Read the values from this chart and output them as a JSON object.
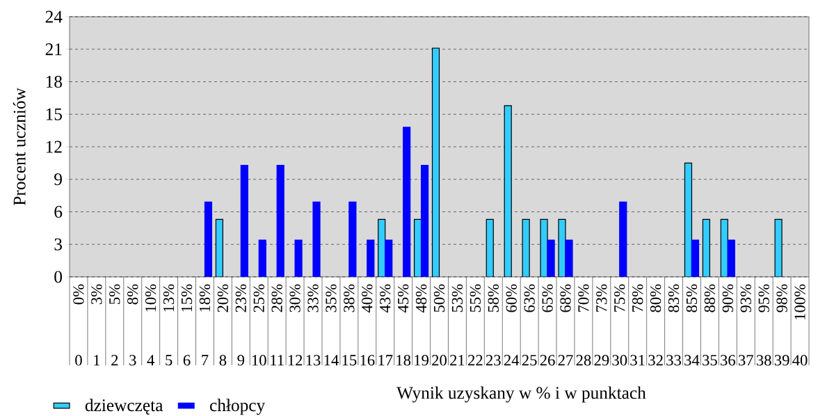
{
  "chart_data": {
    "type": "bar",
    "xlabel": "Wynik uzyskany w % i w punktach",
    "ylabel": "Procent uczniów",
    "categories": [
      "0",
      "1",
      "2",
      "3",
      "4",
      "5",
      "6",
      "7",
      "8",
      "9",
      "10",
      "11",
      "12",
      "13",
      "14",
      "15",
      "16",
      "17",
      "18",
      "19",
      "20",
      "21",
      "22",
      "23",
      "24",
      "25",
      "26",
      "27",
      "28",
      "29",
      "30",
      "31",
      "32",
      "33",
      "34",
      "35",
      "36",
      "37",
      "38",
      "39",
      "40"
    ],
    "x2lim": [
      -1.25,
      101.25
    ],
    "x2ticks": [
      {
        "value": 0,
        "label": "0%"
      },
      {
        "value": 2.5,
        "label": "3%"
      },
      {
        "value": 5,
        "label": "5%"
      },
      {
        "value": 7.5,
        "label": "8%"
      },
      {
        "value": 10,
        "label": "10%"
      },
      {
        "value": 12.5,
        "label": "13%"
      },
      {
        "value": 15,
        "label": "15%"
      },
      {
        "value": 17.5,
        "label": "18%"
      },
      {
        "value": 20,
        "label": "20%"
      },
      {
        "value": 22.5,
        "label": "23%"
      },
      {
        "value": 25,
        "label": "25%"
      },
      {
        "value": 27.5,
        "label": "28%"
      },
      {
        "value": 30,
        "label": "30%"
      },
      {
        "value": 32.5,
        "label": "33%"
      },
      {
        "value": 35,
        "label": "35%"
      },
      {
        "value": 37.5,
        "label": "38%"
      },
      {
        "value": 40,
        "label": "40%"
      },
      {
        "value": 42.5,
        "label": "43%"
      },
      {
        "value": 45,
        "label": "45%"
      },
      {
        "value": 47.5,
        "label": "48%"
      },
      {
        "value": 50,
        "label": "50%"
      },
      {
        "value": 52.5,
        "label": "53%"
      },
      {
        "value": 55,
        "label": "55%"
      },
      {
        "value": 57.5,
        "label": "58%"
      },
      {
        "value": 60,
        "label": "60%"
      },
      {
        "value": 62.5,
        "label": "63%"
      },
      {
        "value": 65,
        "label": "65%"
      },
      {
        "value": 67.5,
        "label": "68%"
      },
      {
        "value": 70,
        "label": "70%"
      },
      {
        "value": 72.5,
        "label": "73%"
      },
      {
        "value": 75,
        "label": "75%"
      },
      {
        "value": 77.5,
        "label": "78%"
      },
      {
        "value": 80,
        "label": "80%"
      },
      {
        "value": 82.5,
        "label": "83%"
      },
      {
        "value": 85,
        "label": "85%"
      },
      {
        "value": 87.5,
        "label": "88%"
      },
      {
        "value": 90,
        "label": "90%"
      },
      {
        "value": 92.5,
        "label": "93%"
      },
      {
        "value": 95,
        "label": "95%"
      },
      {
        "value": 97.5,
        "label": "98%"
      },
      {
        "value": 100,
        "label": "100%"
      }
    ],
    "ylim": [
      0,
      24
    ],
    "yticks": [
      0,
      3,
      6,
      9,
      12,
      15,
      18,
      21,
      24
    ],
    "grid": "y",
    "legend": "bottom left",
    "series": [
      {
        "name": "dziewczęta",
        "color": "#33ccff",
        "values": [
          null,
          null,
          null,
          null,
          null,
          null,
          null,
          null,
          5.3,
          null,
          null,
          null,
          null,
          null,
          null,
          null,
          null,
          5.3,
          null,
          5.3,
          21.1,
          null,
          null,
          5.3,
          15.8,
          5.3,
          5.3,
          5.3,
          null,
          null,
          null,
          null,
          null,
          null,
          10.5,
          5.3,
          5.3,
          null,
          null,
          5.3,
          null
        ]
      },
      {
        "name": "chłopcy",
        "color": "#0000ff",
        "values": [
          null,
          null,
          null,
          null,
          null,
          null,
          null,
          6.9,
          null,
          10.3,
          3.4,
          10.3,
          3.4,
          6.9,
          null,
          6.9,
          3.4,
          3.4,
          13.8,
          10.3,
          null,
          null,
          null,
          null,
          null,
          null,
          3.4,
          3.4,
          null,
          null,
          6.9,
          null,
          null,
          null,
          3.4,
          null,
          3.4,
          null,
          null,
          null,
          null
        ]
      }
    ]
  }
}
